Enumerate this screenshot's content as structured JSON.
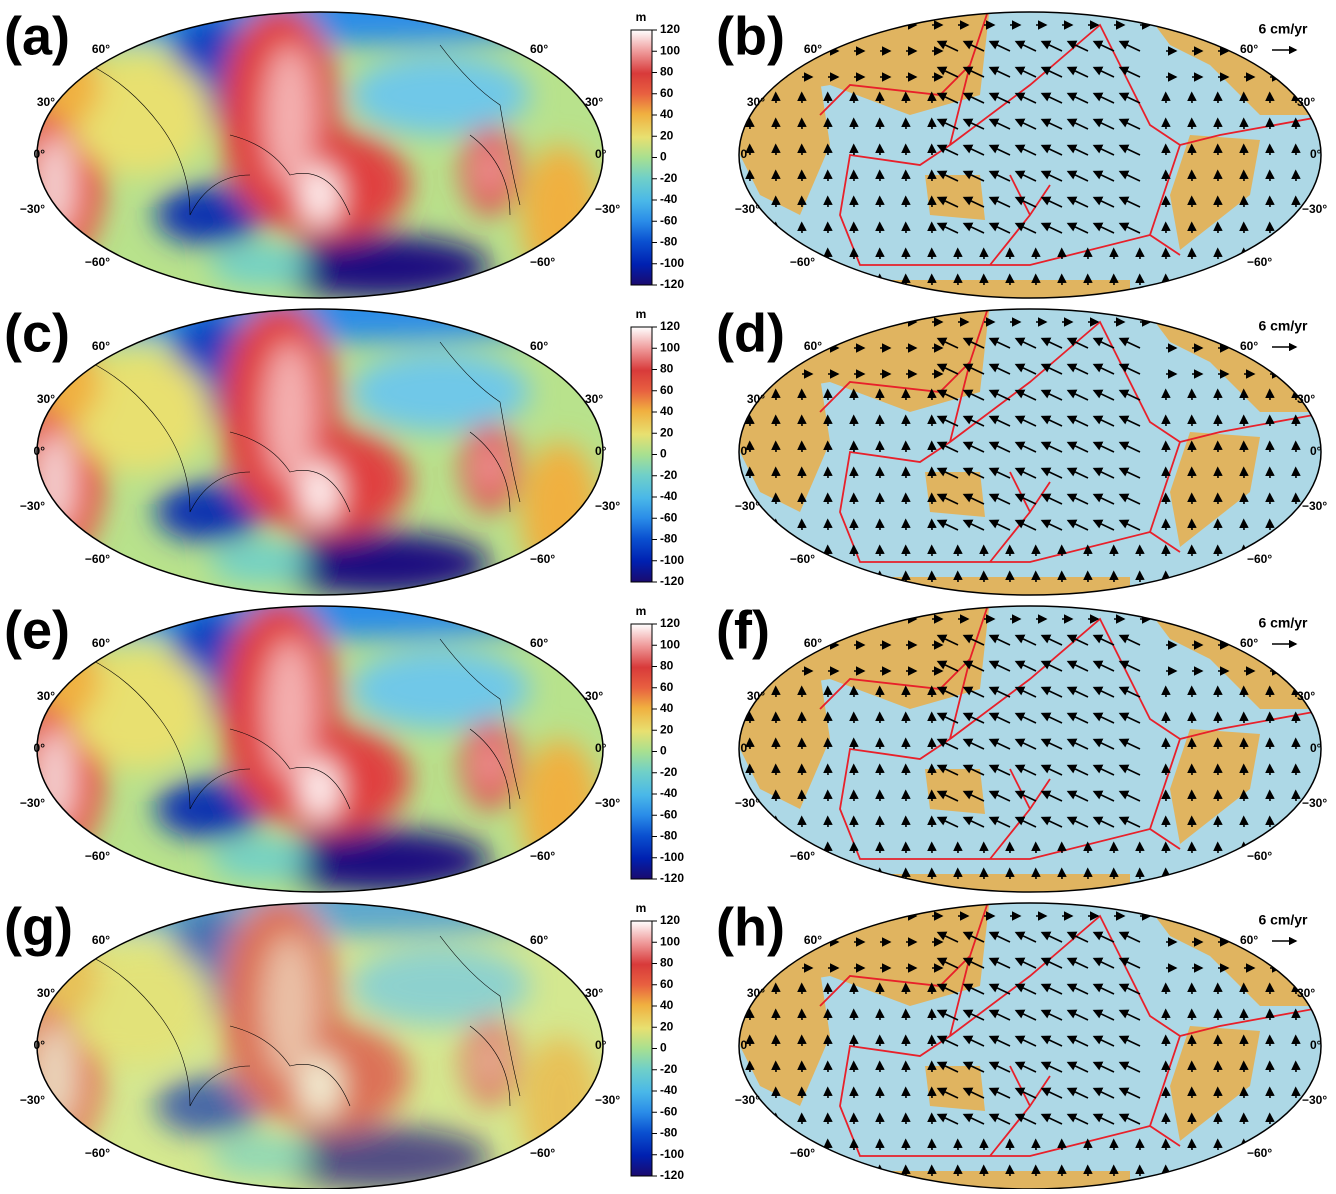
{
  "panels": [
    {
      "label": "(a)"
    },
    {
      "label": "(b)"
    },
    {
      "label": "(c)"
    },
    {
      "label": "(d)"
    },
    {
      "label": "(e)"
    },
    {
      "label": "(f)"
    },
    {
      "label": "(g)"
    },
    {
      "label": "(h)"
    }
  ],
  "lat_labels": [
    "60°",
    "30°",
    "0°",
    "−30°",
    "−60°"
  ],
  "colorbar": {
    "unit": "m",
    "ticks": [
      120,
      100,
      80,
      60,
      40,
      20,
      0,
      -20,
      -40,
      -60,
      -80,
      -100,
      -120
    ]
  },
  "velocity_scale": "6 cm/yr"
}
